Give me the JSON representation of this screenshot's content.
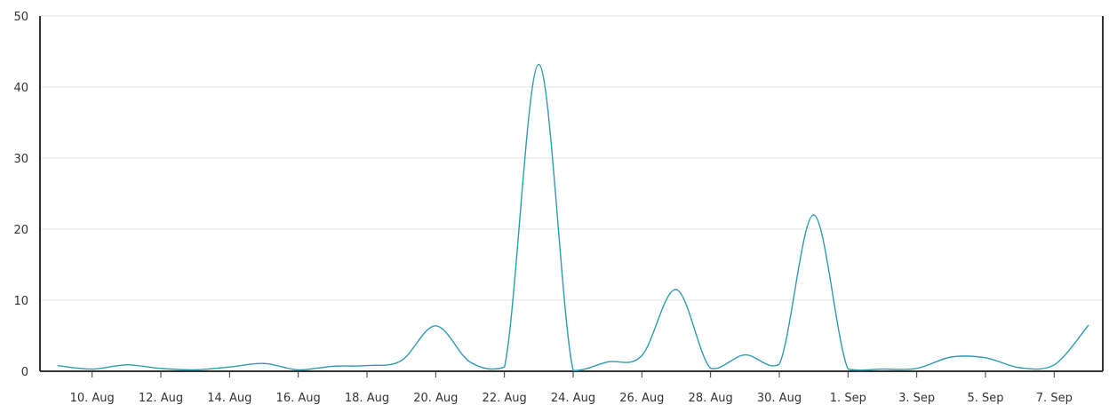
{
  "chart_data": {
    "type": "line",
    "title": "",
    "xlabel": "",
    "ylabel": "",
    "ylim": [
      0,
      50
    ],
    "y_ticks": [
      0,
      10,
      20,
      30,
      40,
      50
    ],
    "grid": true,
    "legend": "none",
    "x_ticks": [
      "10. Aug",
      "12. Aug",
      "14. Aug",
      "16. Aug",
      "18. Aug",
      "20. Aug",
      "22. Aug",
      "24. Aug",
      "26. Aug",
      "28. Aug",
      "30. Aug",
      "1. Sep",
      "3. Sep",
      "5. Sep",
      "7. Sep"
    ],
    "x": [
      "9. Aug",
      "10. Aug",
      "11. Aug",
      "12. Aug",
      "13. Aug",
      "14. Aug",
      "15. Aug",
      "16. Aug",
      "17. Aug",
      "18. Aug",
      "19. Aug",
      "20. Aug",
      "21. Aug",
      "22. Aug",
      "23. Aug",
      "24. Aug",
      "25. Aug",
      "26. Aug",
      "27. Aug",
      "28. Aug",
      "29. Aug",
      "30. Aug",
      "31. Aug",
      "1. Sep",
      "2. Sep",
      "3. Sep",
      "4. Sep",
      "5. Sep",
      "6. Sep",
      "7. Sep",
      "8. Sep"
    ],
    "series": [
      {
        "color": "#2e9bb0",
        "values": [
          0.8,
          0.3,
          0.9,
          0.4,
          0.2,
          0.6,
          1.1,
          0.2,
          0.7,
          0.8,
          1.5,
          6.4,
          1.3,
          0.6,
          43.2,
          0.1,
          1.3,
          2.2,
          11.5,
          0.4,
          2.3,
          1.0,
          22.0,
          0.3,
          0.3,
          0.4,
          2.0,
          1.9,
          0.5,
          0.9,
          6.5
        ]
      }
    ]
  }
}
